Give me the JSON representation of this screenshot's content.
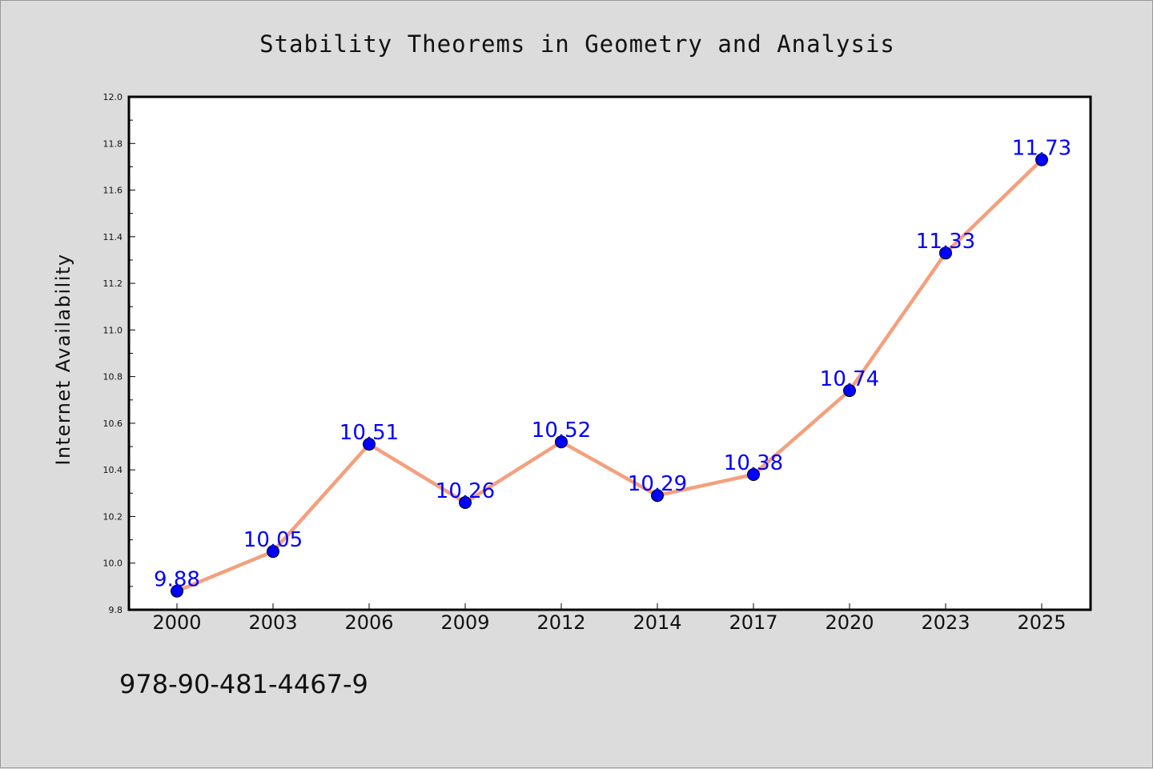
{
  "chart_data": {
    "type": "line",
    "title": "Stability Theorems in Geometry and Analysis",
    "xlabel": "",
    "ylabel": "Internet Availability",
    "categories": [
      "2000",
      "2003",
      "2006",
      "2009",
      "2012",
      "2014",
      "2017",
      "2020",
      "2023",
      "2025"
    ],
    "series": [
      {
        "values": [
          9.88,
          10.05,
          10.51,
          10.26,
          10.52,
          10.29,
          10.38,
          10.74,
          11.33,
          11.73
        ],
        "line_color": "#f4a07c",
        "marker_color": "#0000ff"
      }
    ],
    "data_labels": [
      "9.88",
      "10.05",
      "10.51",
      "10.26",
      "10.52",
      "10.29",
      "10.38",
      "10.74",
      "11.33",
      "11.73"
    ],
    "ylim": [
      9.8,
      12.0
    ],
    "yticks": [
      "9.8",
      "10.0",
      "10.2",
      "10.4",
      "10.6",
      "10.8",
      "11.0",
      "11.2",
      "11.4",
      "11.6",
      "11.8",
      "12.0"
    ],
    "grid": false,
    "legend": "none"
  },
  "footer": {
    "isbn": "978-90-481-4467-9"
  }
}
